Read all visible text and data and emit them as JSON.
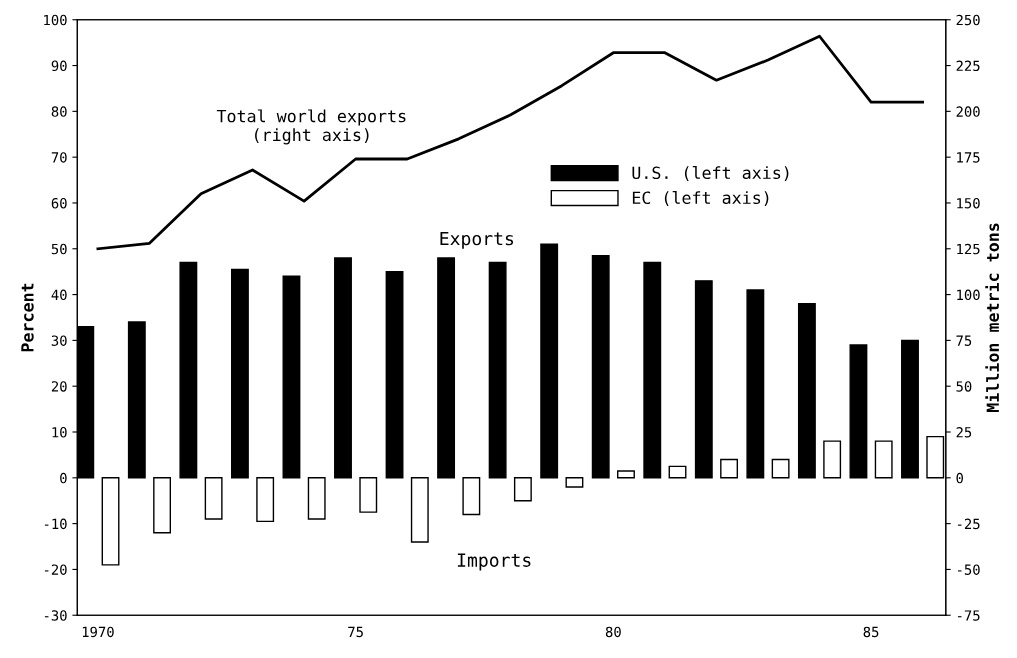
{
  "chart_data": {
    "type": "bar",
    "categories": [
      "1970",
      null,
      null,
      null,
      null,
      "75",
      null,
      null,
      null,
      null,
      "80",
      null,
      null,
      null,
      null,
      "85",
      null
    ],
    "series": [
      {
        "name": "U.S. (left axis)",
        "color": "#000000",
        "values": [
          33,
          34,
          47,
          45.5,
          44,
          48,
          45,
          48,
          47,
          51,
          48.5,
          47,
          43,
          41,
          38,
          29,
          30
        ]
      },
      {
        "name": "EC (left axis)",
        "color": "#ffffff",
        "values": [
          -19,
          -12,
          -9,
          -9.5,
          -9,
          -7.5,
          -14,
          -8,
          -5,
          -2,
          1.5,
          2.5,
          4,
          4,
          8,
          8,
          9
        ]
      },
      {
        "name": "Total world exports (right axis)",
        "type": "line",
        "axis": "y2",
        "color": "#000000",
        "values": [
          125,
          128,
          155,
          168,
          151,
          174,
          174,
          185,
          198,
          214,
          232,
          232,
          217,
          228,
          241,
          205,
          205
        ]
      }
    ],
    "ylabel": "Percent",
    "y2label": "Million metric tons",
    "ylim": [
      -30,
      100
    ],
    "yticks": [
      -30,
      -20,
      -10,
      0,
      10,
      20,
      30,
      40,
      50,
      60,
      70,
      80,
      90,
      100
    ],
    "y2lim": [
      -75,
      250
    ],
    "y2ticks": [
      -75,
      -50,
      -25,
      0,
      25,
      50,
      75,
      100,
      125,
      150,
      175,
      200,
      225,
      250
    ],
    "annotations": [
      "Exports",
      "Imports"
    ],
    "legend": "right",
    "grid": false,
    "line_style": "solid"
  }
}
